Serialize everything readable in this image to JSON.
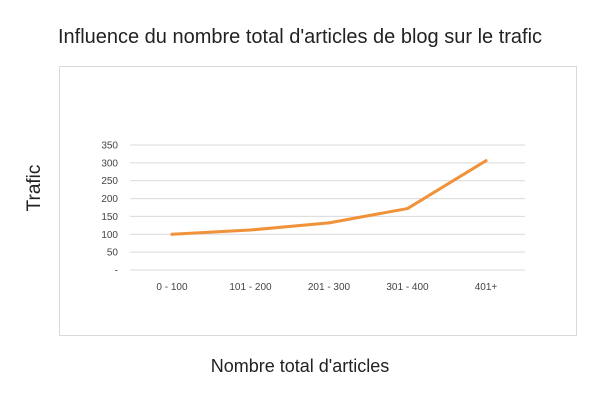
{
  "chart_data": {
    "type": "line",
    "title": "Influence du nombre total d'articles de blog sur le trafic",
    "xlabel": "Nombre total d'articles",
    "ylabel": "Trafic",
    "categories": [
      "0 - 100",
      "101 - 200",
      "201 - 300",
      "301 - 400",
      "401+"
    ],
    "series": [
      {
        "values": [
          100,
          112,
          132,
          172,
          306
        ]
      }
    ],
    "ylim": [
      0,
      350
    ],
    "yticks": [
      0,
      50,
      100,
      150,
      200,
      250,
      300,
      350
    ],
    "ytick_labels": [
      "-",
      "50",
      "100",
      "150",
      "200",
      "250",
      "300",
      "350"
    ],
    "grid": true,
    "line_color": "#f0923a",
    "grid_color": "#d9d9d9"
  }
}
